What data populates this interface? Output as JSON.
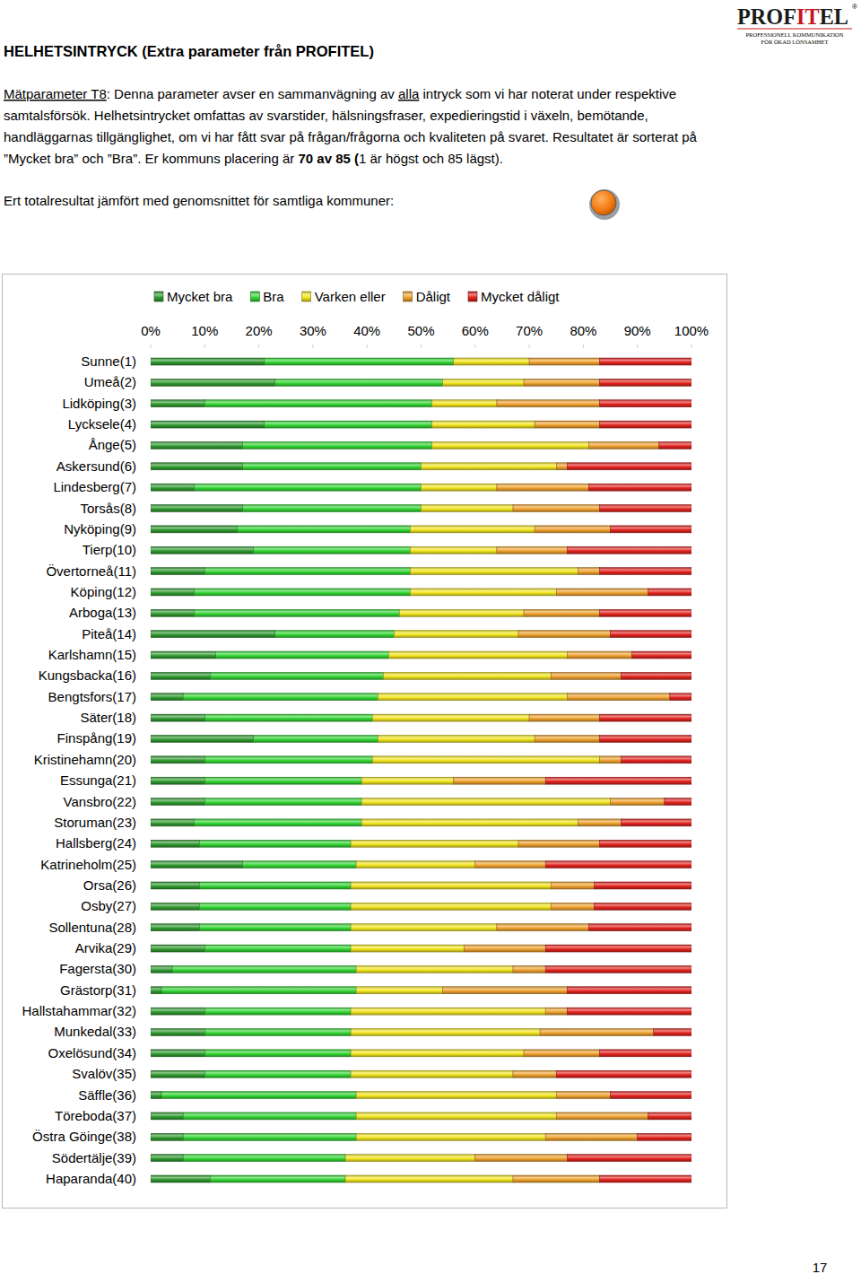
{
  "header": {
    "title": "HELHETSINTRYCK (Extra parameter från PROFITEL)",
    "logo": {
      "parts": [
        {
          "text": "PROF"
        },
        {
          "text": "IT",
          "style": "accent"
        },
        {
          "text": "EL"
        }
      ],
      "registered": "®",
      "tagline": [
        "PROFESSIONELL KOMMUNIKATION",
        "FÖR ÖKAD LÖNSAMHET"
      ]
    },
    "paragraph": [
      [
        {
          "text": "Mätparameter T8",
          "style": "underline"
        },
        {
          "text": ": Denna parameter avser en sammanvägning av "
        },
        {
          "text": "alla",
          "style": "underline"
        },
        {
          "text": " intryck som vi har noterat under respektive"
        }
      ],
      [
        {
          "text": "samtalsförsök. Helhetsintrycket omfattas av svarstider, hälsningsfraser, expedieringstid i växeln, bemötande,"
        }
      ],
      [
        {
          "text": "handläggarnas tillgänglighet, om vi har fått svar på frågan/frågorna och kvaliteten på svaret. Resultatet är sorterat på"
        }
      ],
      [
        {
          "text": "”Mycket bra” och ”Bra”. Er kommuns placering är "
        },
        {
          "text": "70 av 85 (",
          "style": "bold"
        },
        {
          "text": "1 är högst och 85 lägst)."
        }
      ]
    ],
    "summary": "Ert totalresultat jämfört med genomsnittet för samtliga kommuner:"
  },
  "page_number": "17",
  "chart_data": {
    "type": "bar",
    "orientation": "horizontal",
    "stacked": true,
    "grid": false,
    "legend": "top",
    "categories": [
      "Sunne(1)",
      "Umeå(2)",
      "Lidköping(3)",
      "Lycksele(4)",
      "Ånge(5)",
      "Askersund(6)",
      "Lindesberg(7)",
      "Torsås(8)",
      "Nyköping(9)",
      "Tierp(10)",
      "Övertorneå(11)",
      "Köping(12)",
      "Arboga(13)",
      "Piteå(14)",
      "Karlshamn(15)",
      "Kungsbacka(16)",
      "Bengtsfors(17)",
      "Säter(18)",
      "Finspång(19)",
      "Kristinehamn(20)",
      "Essunga(21)",
      "Vansbro(22)",
      "Storuman(23)",
      "Hallsberg(24)",
      "Katrineholm(25)",
      "Orsa(26)",
      "Osby(27)",
      "Sollentuna(28)",
      "Arvika(29)",
      "Fagersta(30)",
      "Grästorp(31)",
      "Hallstahammar(32)",
      "Munkedal(33)",
      "Oxelösund(34)",
      "Svalöv(35)",
      "Säffle(36)",
      "Töreboda(37)",
      "Östra Göinge(38)",
      "Södertälje(39)",
      "Haparanda(40)"
    ],
    "series": [
      {
        "name": "Mycket bra",
        "color": "#2f9a2f",
        "values": [
          21,
          23,
          10,
          21,
          17,
          17,
          8,
          17,
          16,
          19,
          10,
          8,
          8,
          23,
          12,
          11,
          6,
          10,
          19,
          10,
          10,
          10,
          8,
          9,
          17,
          9,
          9,
          9,
          10,
          4,
          2,
          10,
          10,
          10,
          10,
          2,
          6,
          6,
          6,
          11
        ]
      },
      {
        "name": "Bra",
        "color": "#33d633",
        "values": [
          35,
          31,
          42,
          31,
          35,
          33,
          42,
          33,
          32,
          29,
          38,
          40,
          38,
          22,
          32,
          32,
          36,
          31,
          23,
          31,
          29,
          29,
          31,
          28,
          21,
          28,
          28,
          28,
          27,
          34,
          36,
          27,
          27,
          27,
          27,
          36,
          32,
          32,
          30,
          25
        ]
      },
      {
        "name": "Varken eller",
        "color": "#f2e51e",
        "values": [
          14,
          15,
          12,
          19,
          29,
          25,
          14,
          17,
          23,
          16,
          31,
          27,
          23,
          23,
          33,
          31,
          35,
          29,
          29,
          42,
          17,
          46,
          40,
          31,
          22,
          37,
          37,
          27,
          21,
          29,
          16,
          36,
          35,
          32,
          30,
          37,
          37,
          35,
          24,
          31
        ]
      },
      {
        "name": "Dåligt",
        "color": "#f0a22e",
        "values": [
          13,
          14,
          19,
          12,
          13,
          2,
          17,
          16,
          14,
          13,
          4,
          17,
          14,
          17,
          12,
          13,
          19,
          13,
          12,
          4,
          17,
          10,
          8,
          15,
          13,
          8,
          8,
          17,
          15,
          6,
          23,
          4,
          21,
          14,
          8,
          10,
          17,
          17,
          17,
          16
        ]
      },
      {
        "name": "Mycket dåligt",
        "color": "#e3231e",
        "values": [
          17,
          17,
          17,
          17,
          6,
          23,
          19,
          17,
          15,
          23,
          17,
          8,
          17,
          15,
          11,
          13,
          4,
          17,
          17,
          13,
          27,
          5,
          13,
          17,
          27,
          18,
          18,
          19,
          27,
          27,
          23,
          23,
          7,
          17,
          25,
          15,
          8,
          10,
          23,
          17
        ]
      }
    ],
    "xlim": [
      0,
      100
    ],
    "xticks": [
      {
        "value": 0,
        "label": "0%"
      },
      {
        "value": 10,
        "label": "10%"
      },
      {
        "value": 20,
        "label": "20%"
      },
      {
        "value": 30,
        "label": "30%"
      },
      {
        "value": 40,
        "label": "40%"
      },
      {
        "value": 50,
        "label": "50%"
      },
      {
        "value": 60,
        "label": "60%"
      },
      {
        "value": 70,
        "label": "70%"
      },
      {
        "value": 80,
        "label": "80%"
      },
      {
        "value": 90,
        "label": "90%"
      },
      {
        "value": 100,
        "label": "100%"
      }
    ]
  }
}
